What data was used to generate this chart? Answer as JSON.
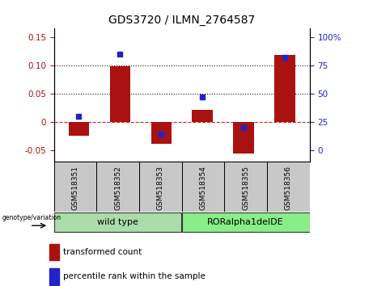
{
  "title": "GDS3720 / ILMN_2764587",
  "categories": [
    "GSM518351",
    "GSM518352",
    "GSM518353",
    "GSM518354",
    "GSM518355",
    "GSM518356"
  ],
  "bar_values": [
    -0.025,
    0.099,
    -0.038,
    0.022,
    -0.055,
    0.118
  ],
  "dot_percentiles": [
    30,
    85,
    14,
    47,
    20,
    82
  ],
  "bar_color": "#AA1111",
  "dot_color": "#2222CC",
  "ylim_left": [
    -0.07,
    0.165
  ],
  "ylim_right": [
    0,
    100
  ],
  "yticks_left": [
    -0.05,
    0.0,
    0.05,
    0.1,
    0.15
  ],
  "yticks_left_labels": [
    "-0.05",
    "0",
    "0.05",
    "0.10",
    "0.15"
  ],
  "yticks_right": [
    0,
    25,
    50,
    75,
    100
  ],
  "yticks_right_labels": [
    "0",
    "25",
    "50",
    "75",
    "100%"
  ],
  "hline_y": [
    0.0,
    0.05,
    0.1
  ],
  "hline_styles": [
    "dashed",
    "dotted",
    "dotted"
  ],
  "hline_colors": [
    "#CC2222",
    "#111111",
    "#111111"
  ],
  "group_labels": [
    "wild type",
    "RORalpha1delDE"
  ],
  "group_colors": [
    "#AADDAA",
    "#88EE88"
  ],
  "legend_items": [
    "transformed count",
    "percentile rank within the sample"
  ],
  "legend_colors": [
    "#AA1111",
    "#2222CC"
  ],
  "tick_bg_color": "#C8C8C8",
  "bar_width": 0.5
}
